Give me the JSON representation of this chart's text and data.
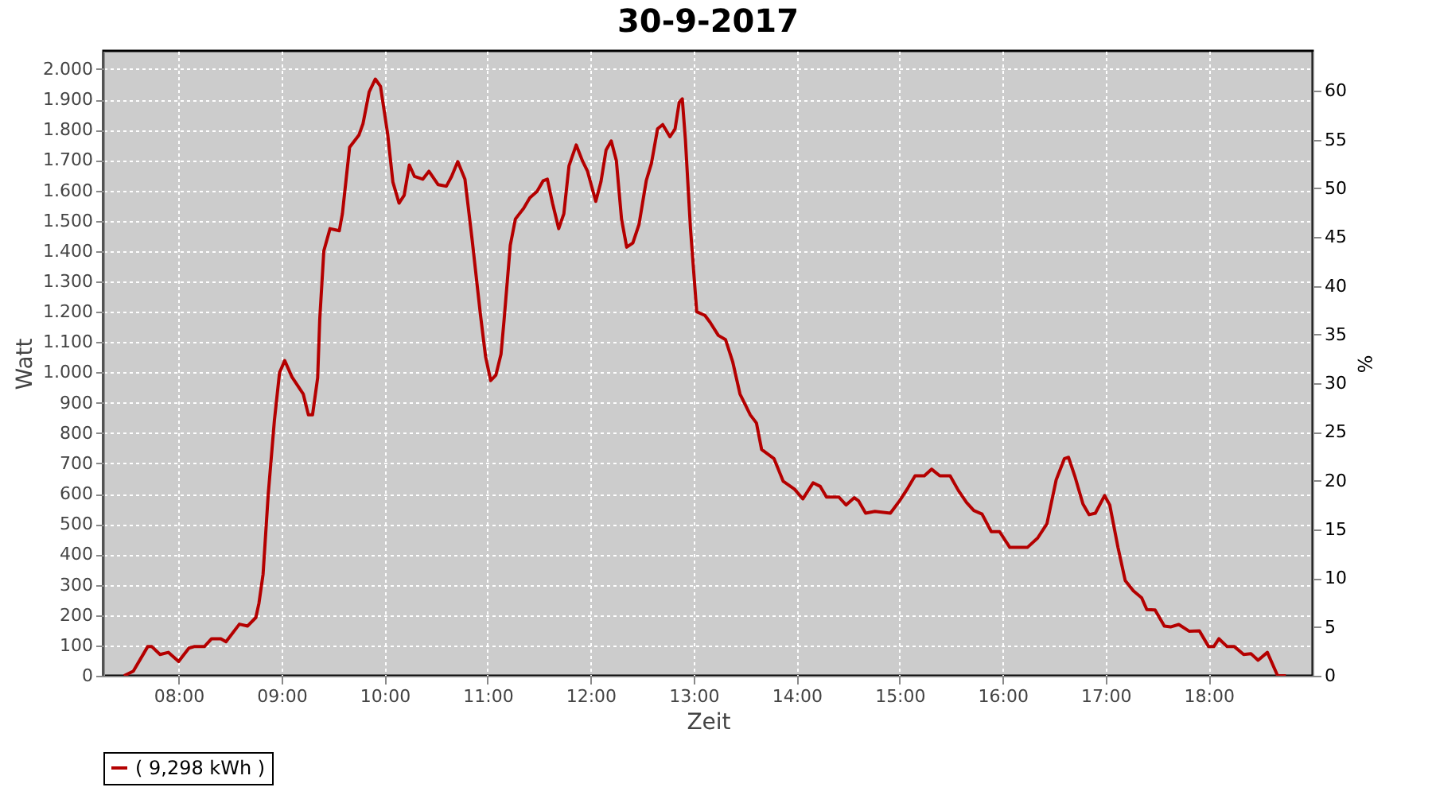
{
  "chart_data": {
    "type": "line",
    "title": "30-9-2017",
    "xlabel": "Zeit",
    "ylabel": "Watt",
    "y2label": "%",
    "xlim": [
      7.27,
      19.01
    ],
    "xticks": [
      {
        "value": 8,
        "label": "08:00"
      },
      {
        "value": 9,
        "label": "09:00"
      },
      {
        "value": 10,
        "label": "10:00"
      },
      {
        "value": 11,
        "label": "11:00"
      },
      {
        "value": 12,
        "label": "12:00"
      },
      {
        "value": 13,
        "label": "13:00"
      },
      {
        "value": 14,
        "label": "14:00"
      },
      {
        "value": 15,
        "label": "15:00"
      },
      {
        "value": 16,
        "label": "16:00"
      },
      {
        "value": 17,
        "label": "17:00"
      },
      {
        "value": 18,
        "label": "18:00"
      }
    ],
    "ylim": [
      0,
      2060
    ],
    "yticks": [
      0,
      100,
      200,
      300,
      400,
      500,
      600,
      700,
      800,
      900,
      {
        "value": 1000,
        "label": "1.000"
      },
      {
        "value": 1100,
        "label": "1.100"
      },
      {
        "value": 1200,
        "label": "1.200"
      },
      {
        "value": 1300,
        "label": "1.300"
      },
      {
        "value": 1400,
        "label": "1.400"
      },
      {
        "value": 1500,
        "label": "1.500"
      },
      {
        "value": 1600,
        "label": "1.600"
      },
      {
        "value": 1700,
        "label": "1.700"
      },
      {
        "value": 1800,
        "label": "1.800"
      },
      {
        "value": 1900,
        "label": "1.900"
      },
      {
        "value": 2000,
        "label": "2.000"
      }
    ],
    "y2lim": [
      0,
      64.1
    ],
    "y2ticks": [
      0,
      5,
      10,
      15,
      20,
      25,
      30,
      35,
      40,
      45,
      50,
      55,
      60
    ],
    "grid": true,
    "legend": "bottom",
    "x": [
      7.47,
      7.56,
      7.7,
      7.74,
      7.82,
      7.9,
      8.0,
      8.1,
      8.15,
      8.25,
      8.32,
      8.41,
      8.46,
      8.59,
      8.67,
      8.75,
      8.78,
      8.82,
      8.87,
      8.93,
      8.98,
      9.03,
      9.1,
      9.21,
      9.26,
      9.3,
      9.35,
      9.37,
      9.41,
      9.47,
      9.56,
      9.59,
      9.66,
      9.75,
      9.79,
      9.85,
      9.91,
      9.96,
      10.03,
      10.08,
      10.14,
      10.19,
      10.24,
      10.29,
      10.37,
      10.43,
      10.52,
      10.6,
      10.65,
      10.71,
      10.78,
      10.85,
      10.93,
      10.98,
      11.03,
      11.08,
      11.13,
      11.16,
      11.22,
      11.27,
      11.35,
      11.41,
      11.48,
      11.54,
      11.58,
      11.63,
      11.69,
      11.74,
      11.79,
      11.86,
      11.92,
      11.97,
      12.05,
      12.1,
      12.15,
      12.2,
      12.25,
      12.3,
      12.35,
      12.41,
      12.47,
      12.54,
      12.59,
      12.65,
      12.7,
      12.77,
      12.82,
      12.86,
      12.89,
      12.92,
      12.97,
      13.03,
      13.11,
      13.16,
      13.24,
      13.31,
      13.38,
      13.45,
      13.55,
      13.61,
      13.66,
      13.78,
      13.87,
      13.98,
      14.06,
      14.16,
      14.23,
      14.29,
      14.41,
      14.48,
      14.56,
      14.6,
      14.67,
      14.76,
      14.91,
      15.0,
      15.08,
      15.15,
      15.24,
      15.31,
      15.39,
      15.49,
      15.57,
      15.65,
      15.72,
      15.8,
      15.89,
      15.97,
      16.07,
      16.24,
      16.34,
      16.43,
      16.52,
      16.6,
      16.64,
      16.7,
      16.78,
      16.84,
      16.9,
      16.99,
      17.04,
      17.12,
      17.19,
      17.27,
      17.35,
      17.4,
      17.48,
      17.57,
      17.63,
      17.71,
      17.81,
      17.91,
      18.0,
      18.05,
      18.1,
      18.18,
      18.25,
      18.34,
      18.41,
      18.48,
      18.57,
      18.67,
      18.75
    ],
    "series": [
      {
        "name": "( 9,298 kWh )",
        "color": "#b40000",
        "values": [
          0,
          15,
          96,
          96,
          70,
          77,
          47,
          91,
          96,
          96,
          122,
          122,
          112,
          170,
          164,
          192,
          239,
          335,
          598,
          842,
          999,
          1039,
          985,
          929,
          860,
          860,
          982,
          1174,
          1401,
          1474,
          1467,
          1523,
          1742,
          1782,
          1820,
          1925,
          1967,
          1943,
          1785,
          1628,
          1558,
          1584,
          1684,
          1646,
          1637,
          1663,
          1619,
          1614,
          1646,
          1695,
          1637,
          1436,
          1191,
          1052,
          973,
          991,
          1060,
          1174,
          1419,
          1506,
          1541,
          1576,
          1597,
          1632,
          1637,
          1558,
          1474,
          1523,
          1681,
          1750,
          1698,
          1663,
          1564,
          1628,
          1733,
          1763,
          1698,
          1506,
          1413,
          1427,
          1488,
          1632,
          1689,
          1803,
          1817,
          1777,
          1803,
          1890,
          1902,
          1768,
          1471,
          1200,
          1188,
          1165,
          1122,
          1108,
          1034,
          929,
          860,
          833,
          746,
          716,
          641,
          615,
          583,
          636,
          624,
          589,
          589,
          563,
          587,
          577,
          536,
          542,
          536,
          577,
          619,
          659,
          659,
          681,
          659,
          659,
          611,
          571,
          545,
          533,
          475,
          475,
          423,
          423,
          454,
          501,
          646,
          716,
          720,
          659,
          566,
          531,
          536,
          594,
          563,
          423,
          314,
          280,
          257,
          218,
          217,
          164,
          161,
          169,
          147,
          148,
          96,
          96,
          122,
          96,
          96,
          70,
          73,
          51,
          77,
          0,
          0
        ]
      }
    ]
  }
}
